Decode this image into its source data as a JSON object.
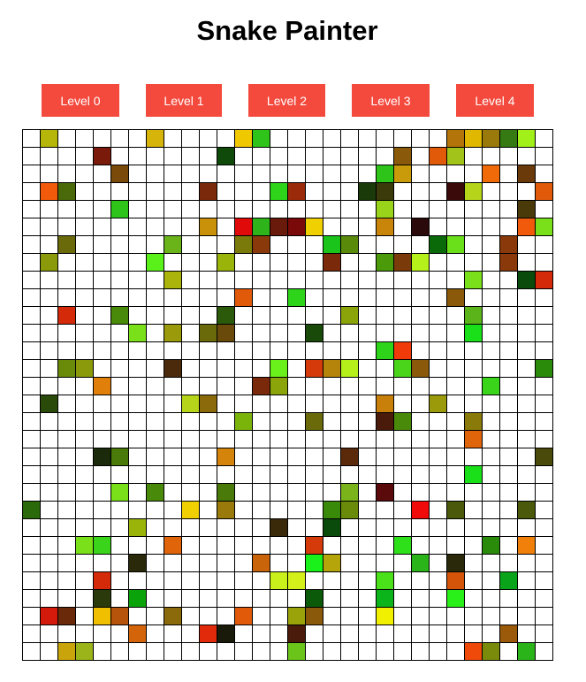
{
  "app": {
    "title": "Snake Painter"
  },
  "colors": {
    "button_bg": "#f44a3e",
    "button_text": "#ffffff",
    "grid_line": "#000000",
    "empty_cell": "#ffffff"
  },
  "levels": [
    {
      "label": "Level 0"
    },
    {
      "label": "Level 1"
    },
    {
      "label": "Level 2"
    },
    {
      "label": "Level 3"
    },
    {
      "label": "Level 4"
    }
  ],
  "grid": {
    "rows": 30,
    "cols": 30,
    "painted": [
      [
        0,
        1,
        "#b5b50a"
      ],
      [
        0,
        7,
        "#d6b40a"
      ],
      [
        0,
        12,
        "#f0c800"
      ],
      [
        0,
        13,
        "#2ec41a"
      ],
      [
        0,
        24,
        "#b3740a"
      ],
      [
        0,
        25,
        "#e0b800"
      ],
      [
        0,
        26,
        "#9a7a0a"
      ],
      [
        0,
        27,
        "#357a12"
      ],
      [
        0,
        28,
        "#a2f01a"
      ],
      [
        1,
        4,
        "#7a1a0a"
      ],
      [
        1,
        11,
        "#0f4a0a"
      ],
      [
        1,
        21,
        "#8a5a0a"
      ],
      [
        1,
        23,
        "#e05a0a"
      ],
      [
        1,
        24,
        "#a2c41a"
      ],
      [
        2,
        5,
        "#7a4a0a"
      ],
      [
        2,
        20,
        "#2ec41a"
      ],
      [
        2,
        21,
        "#c99a0a"
      ],
      [
        2,
        26,
        "#f06a0a"
      ],
      [
        2,
        28,
        "#6a3a0a"
      ],
      [
        3,
        1,
        "#f05a0a"
      ],
      [
        3,
        2,
        "#4a6a0a"
      ],
      [
        3,
        10,
        "#7a2a0a"
      ],
      [
        3,
        14,
        "#2ed41a"
      ],
      [
        3,
        15,
        "#9a2a0a"
      ],
      [
        3,
        19,
        "#1a3a0a"
      ],
      [
        3,
        20,
        "#3a3a0a"
      ],
      [
        3,
        24,
        "#3a0a0a"
      ],
      [
        3,
        25,
        "#b5d41a"
      ],
      [
        3,
        29,
        "#e05a0a"
      ],
      [
        4,
        5,
        "#2ec41a"
      ],
      [
        4,
        20,
        "#9ad41a"
      ],
      [
        4,
        28,
        "#4a3a0a"
      ],
      [
        5,
        10,
        "#c9900a"
      ],
      [
        5,
        12,
        "#e00a0a"
      ],
      [
        5,
        13,
        "#2eb41a"
      ],
      [
        5,
        14,
        "#6a1a0a"
      ],
      [
        5,
        15,
        "#7a0a0a"
      ],
      [
        5,
        16,
        "#f0d000"
      ],
      [
        5,
        20,
        "#c9840a"
      ],
      [
        5,
        22,
        "#2a0a0a"
      ],
      [
        5,
        28,
        "#f05a0a"
      ],
      [
        5,
        29,
        "#7ae01a"
      ],
      [
        6,
        2,
        "#6a6a0a"
      ],
      [
        6,
        8,
        "#6ab41a"
      ],
      [
        6,
        12,
        "#7a7a0a"
      ],
      [
        6,
        13,
        "#8a3a0a"
      ],
      [
        6,
        17,
        "#1ac41a"
      ],
      [
        6,
        18,
        "#5a8a0a"
      ],
      [
        6,
        23,
        "#0a6a0a"
      ],
      [
        6,
        24,
        "#6ae01a"
      ],
      [
        6,
        27,
        "#8a3a0a"
      ],
      [
        7,
        1,
        "#8a9a0a"
      ],
      [
        7,
        7,
        "#5af01a"
      ],
      [
        7,
        11,
        "#9ab40a"
      ],
      [
        7,
        17,
        "#7a2a0a"
      ],
      [
        7,
        20,
        "#4a9a0a"
      ],
      [
        7,
        21,
        "#7a3a0a"
      ],
      [
        7,
        22,
        "#b5f01a"
      ],
      [
        7,
        27,
        "#8a3a0a"
      ],
      [
        8,
        8,
        "#aab40a"
      ],
      [
        8,
        25,
        "#7ae01a"
      ],
      [
        8,
        28,
        "#0a4a0a"
      ],
      [
        8,
        29,
        "#d42a0a"
      ],
      [
        9,
        12,
        "#e05a0a"
      ],
      [
        9,
        15,
        "#2ed41a"
      ],
      [
        9,
        24,
        "#8a5a0a"
      ],
      [
        10,
        2,
        "#d42a0a"
      ],
      [
        10,
        5,
        "#4a8a0a"
      ],
      [
        10,
        11,
        "#2a5a0a"
      ],
      [
        10,
        18,
        "#8aa40a"
      ],
      [
        10,
        25,
        "#5ab41a"
      ],
      [
        11,
        6,
        "#7ae01a"
      ],
      [
        11,
        8,
        "#9a9a0a"
      ],
      [
        11,
        10,
        "#6a6a0a"
      ],
      [
        11,
        11,
        "#6a4a0a"
      ],
      [
        11,
        16,
        "#1a4a0a"
      ],
      [
        11,
        25,
        "#1ae01a"
      ],
      [
        12,
        20,
        "#2ed41a"
      ],
      [
        12,
        21,
        "#f03a0a"
      ],
      [
        13,
        2,
        "#6a8a0a"
      ],
      [
        13,
        3,
        "#8a9a0a"
      ],
      [
        13,
        8,
        "#4a2a0a"
      ],
      [
        13,
        14,
        "#6af01a"
      ],
      [
        13,
        16,
        "#d43a0a"
      ],
      [
        13,
        17,
        "#b5840a"
      ],
      [
        13,
        18,
        "#b5f01a"
      ],
      [
        13,
        21,
        "#4ad41a"
      ],
      [
        13,
        22,
        "#8a5a0a"
      ],
      [
        13,
        29,
        "#2a8a0a"
      ],
      [
        14,
        4,
        "#e0800a"
      ],
      [
        14,
        13,
        "#7a2a0a"
      ],
      [
        14,
        14,
        "#8aa40a"
      ],
      [
        14,
        26,
        "#3ad41a"
      ],
      [
        15,
        1,
        "#2a4a0a"
      ],
      [
        15,
        9,
        "#b5d41a"
      ],
      [
        15,
        10,
        "#8a6a0a"
      ],
      [
        15,
        20,
        "#c9800a"
      ],
      [
        15,
        23,
        "#9a9a0a"
      ],
      [
        16,
        12,
        "#7ab40a"
      ],
      [
        16,
        16,
        "#6a6a0a"
      ],
      [
        16,
        20,
        "#4a1a0a"
      ],
      [
        16,
        21,
        "#4a8a0a"
      ],
      [
        16,
        25,
        "#8a7a0a"
      ],
      [
        17,
        25,
        "#e0640a"
      ],
      [
        18,
        4,
        "#1a2a0a"
      ],
      [
        18,
        5,
        "#4a7a0a"
      ],
      [
        18,
        11,
        "#d4840a"
      ],
      [
        18,
        18,
        "#5a2a0a"
      ],
      [
        18,
        29,
        "#4a4a0a"
      ],
      [
        19,
        25,
        "#1ae01a"
      ],
      [
        20,
        5,
        "#7ae01a"
      ],
      [
        20,
        7,
        "#4a8a0a"
      ],
      [
        20,
        11,
        "#4a7a0a"
      ],
      [
        20,
        18,
        "#7ab41a"
      ],
      [
        20,
        20,
        "#5a0a0a"
      ],
      [
        21,
        0,
        "#2a6a0a"
      ],
      [
        21,
        9,
        "#f0d000"
      ],
      [
        21,
        11,
        "#9a7a0a"
      ],
      [
        21,
        17,
        "#3a8a0a"
      ],
      [
        21,
        18,
        "#6a8a0a"
      ],
      [
        21,
        22,
        "#f00a0a"
      ],
      [
        21,
        24,
        "#4a5a0a"
      ],
      [
        21,
        28,
        "#4a5a0a"
      ],
      [
        22,
        6,
        "#9ab40a"
      ],
      [
        22,
        14,
        "#3a2a0a"
      ],
      [
        22,
        17,
        "#0a4a0a"
      ],
      [
        23,
        3,
        "#7ae01a"
      ],
      [
        23,
        4,
        "#3ad41a"
      ],
      [
        23,
        8,
        "#e0640a"
      ],
      [
        23,
        16,
        "#d43a0a"
      ],
      [
        23,
        21,
        "#2ee01a"
      ],
      [
        23,
        26,
        "#2a8a0a"
      ],
      [
        23,
        28,
        "#f0800a"
      ],
      [
        24,
        6,
        "#2a2a0a"
      ],
      [
        24,
        13,
        "#c9640a"
      ],
      [
        24,
        16,
        "#1af01a"
      ],
      [
        24,
        17,
        "#b5a40a"
      ],
      [
        24,
        22,
        "#2ab41a"
      ],
      [
        24,
        24,
        "#2a2a0a"
      ],
      [
        25,
        4,
        "#d42a0a"
      ],
      [
        25,
        14,
        "#c9f01a"
      ],
      [
        25,
        15,
        "#d4f01a"
      ],
      [
        25,
        20,
        "#4ae01a"
      ],
      [
        25,
        24,
        "#d4540a"
      ],
      [
        25,
        27,
        "#0aa41a"
      ],
      [
        26,
        4,
        "#2a3a0a"
      ],
      [
        26,
        6,
        "#0aa40a"
      ],
      [
        26,
        16,
        "#0a5a0a"
      ],
      [
        26,
        20,
        "#0ab41a"
      ],
      [
        26,
        24,
        "#2af01a"
      ],
      [
        27,
        1,
        "#d41a0a"
      ],
      [
        27,
        2,
        "#6a2a0a"
      ],
      [
        27,
        4,
        "#f0c000"
      ],
      [
        27,
        5,
        "#b5540a"
      ],
      [
        27,
        8,
        "#8a6a0a"
      ],
      [
        27,
        12,
        "#e05a0a"
      ],
      [
        27,
        15,
        "#9aa40a"
      ],
      [
        27,
        16,
        "#8a5a0a"
      ],
      [
        27,
        20,
        "#f0f000"
      ],
      [
        28,
        6,
        "#d4640a"
      ],
      [
        28,
        10,
        "#e02a0a"
      ],
      [
        28,
        11,
        "#1a1a0a"
      ],
      [
        28,
        15,
        "#4a1a0a"
      ],
      [
        28,
        27,
        "#9a5a0a"
      ],
      [
        29,
        2,
        "#c9a40a"
      ],
      [
        29,
        3,
        "#9ab41a"
      ],
      [
        29,
        15,
        "#6ac41a"
      ],
      [
        29,
        25,
        "#f04a0a"
      ],
      [
        29,
        26,
        "#7a8a0a"
      ],
      [
        29,
        28,
        "#2ab41a"
      ]
    ]
  }
}
